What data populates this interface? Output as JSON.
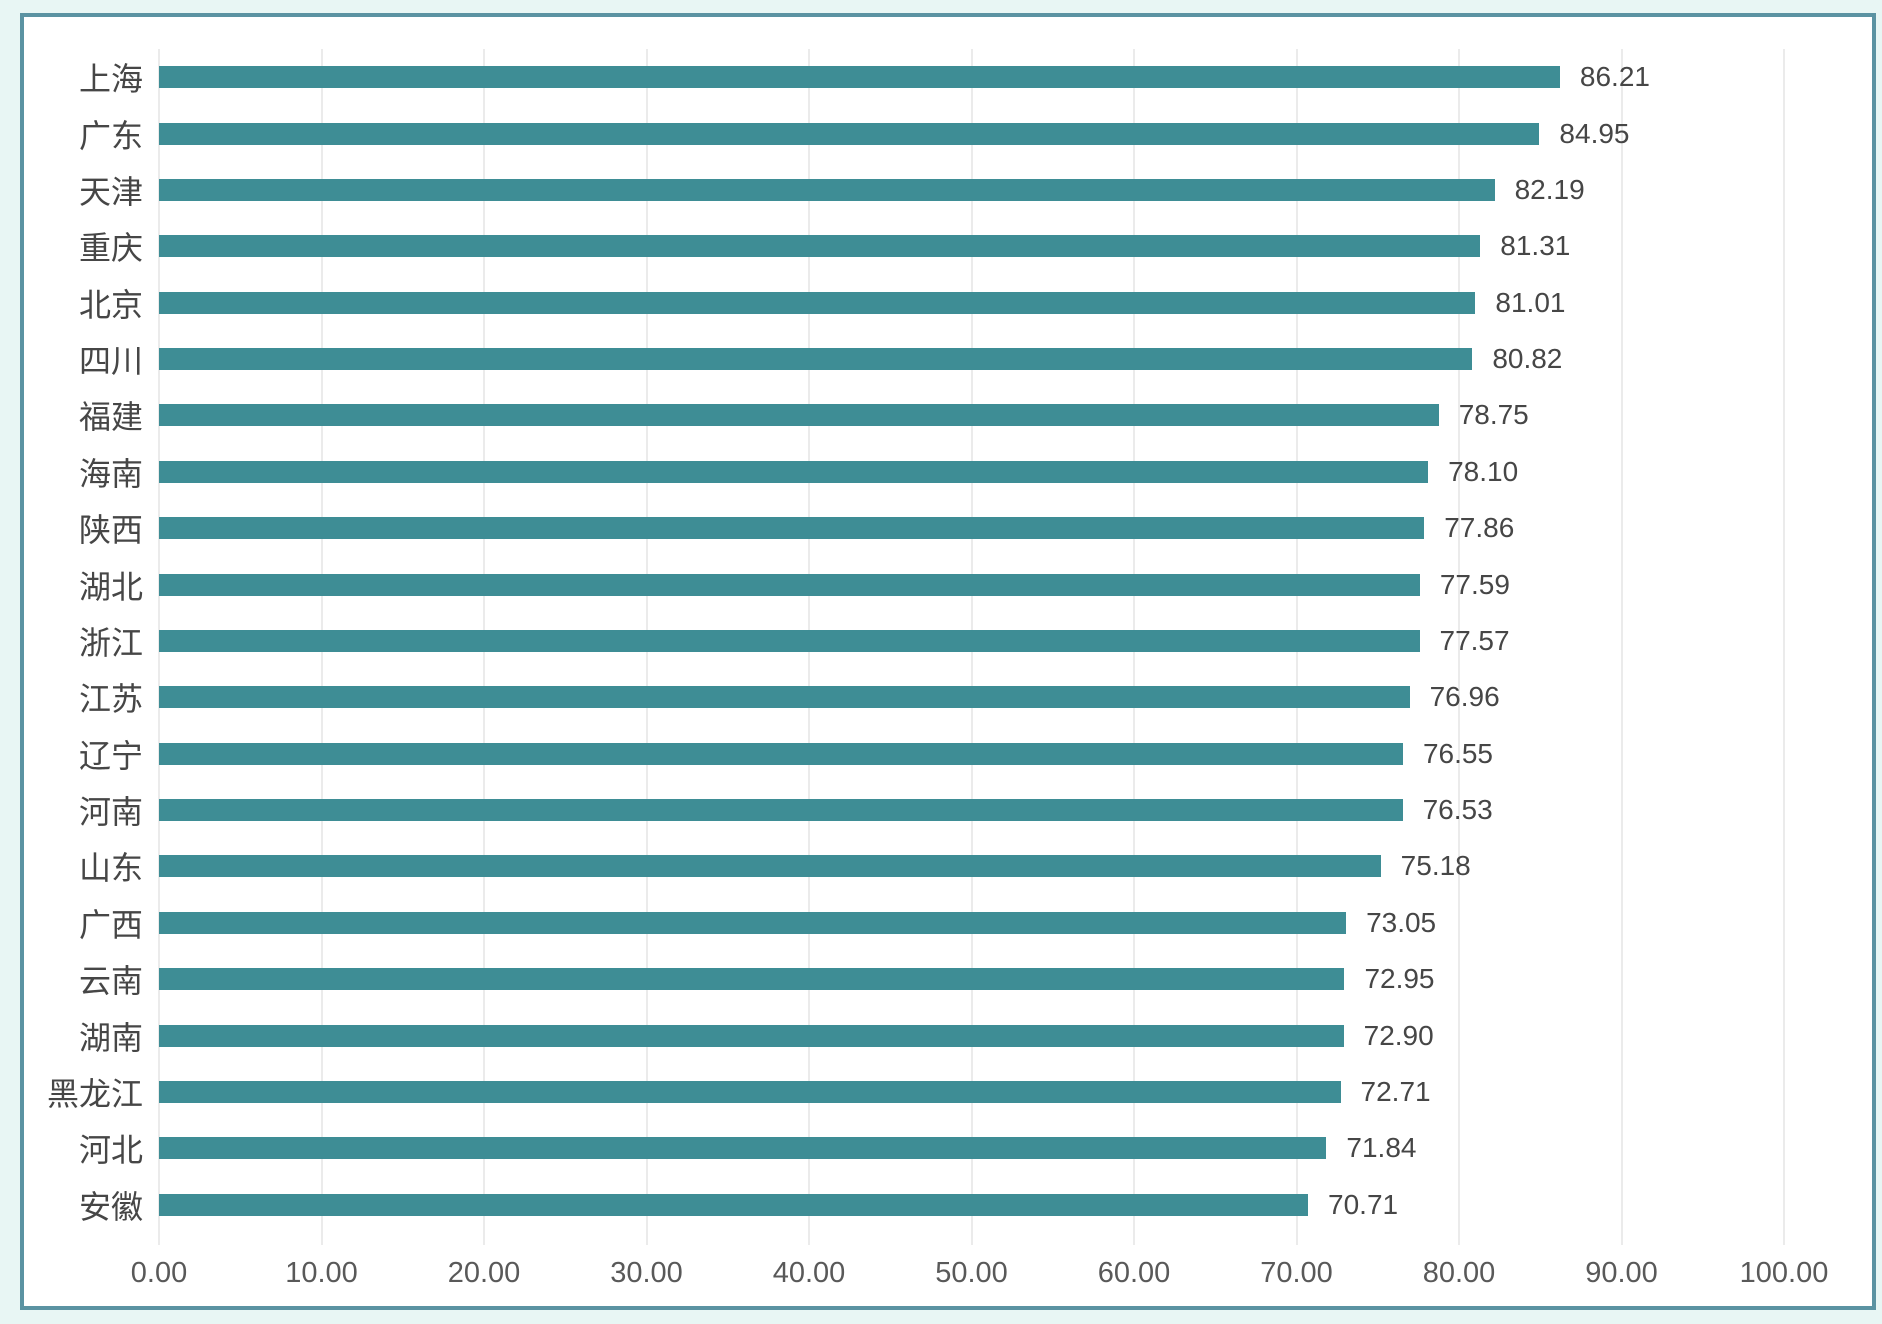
{
  "page": {
    "background_color": "#e8f6f4"
  },
  "frame": {
    "border_color": "#5b93a2",
    "background_color": "#ffffff"
  },
  "chart_data": {
    "type": "bar",
    "orientation": "horizontal",
    "title": "",
    "xlabel": "",
    "ylabel": "",
    "xlim": [
      0,
      100
    ],
    "grid": true,
    "legend": false,
    "bar_color": "#3e8d95",
    "gridline_color": "#ebebeb",
    "label_color": "#464646",
    "tick_color": "#595959",
    "categories": [
      "上海",
      "广东",
      "天津",
      "重庆",
      "北京",
      "四川",
      "福建",
      "海南",
      "陕西",
      "湖北",
      "浙江",
      "江苏",
      "辽宁",
      "河南",
      "山东",
      "广西",
      "云南",
      "湖南",
      "黑龙江",
      "河北",
      "安徽"
    ],
    "values": [
      86.21,
      84.95,
      82.19,
      81.31,
      81.01,
      80.82,
      78.75,
      78.1,
      77.86,
      77.59,
      77.57,
      76.96,
      76.55,
      76.53,
      75.18,
      73.05,
      72.95,
      72.9,
      72.71,
      71.84,
      70.71
    ],
    "value_labels": [
      "86.21",
      "84.95",
      "82.19",
      "81.31",
      "81.01",
      "80.82",
      "78.75",
      "78.10",
      "77.86",
      "77.59",
      "77.57",
      "76.96",
      "76.55",
      "76.53",
      "75.18",
      "73.05",
      "72.95",
      "72.90",
      "72.71",
      "71.84",
      "70.71"
    ],
    "x_ticks": [
      "0.00",
      "10.00",
      "20.00",
      "30.00",
      "40.00",
      "50.00",
      "60.00",
      "70.00",
      "80.00",
      "90.00",
      "100.00"
    ]
  }
}
